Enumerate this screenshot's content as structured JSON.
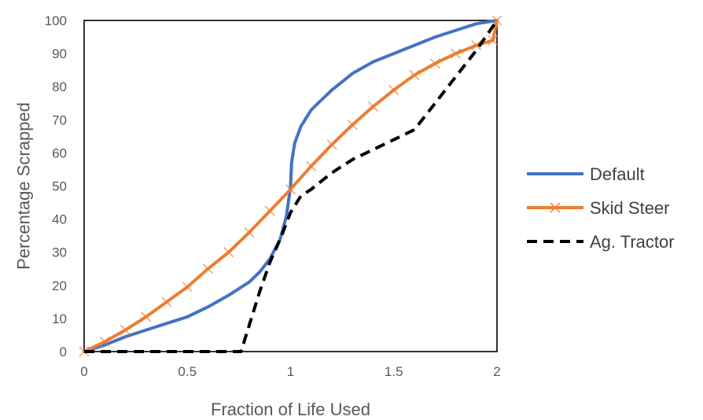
{
  "chart_data": {
    "type": "line",
    "title": "",
    "xlabel": "Fraction of Life Used",
    "ylabel": "Percentage Scrapped",
    "xlim": [
      0,
      2
    ],
    "ylim": [
      0,
      100
    ],
    "x_ticks": [
      0,
      0.5,
      1,
      1.5,
      2
    ],
    "x_tick_labels": [
      "0",
      "0.5",
      "1",
      "1.5",
      "2"
    ],
    "y_ticks": [
      0,
      10,
      20,
      30,
      40,
      50,
      60,
      70,
      80,
      90,
      100
    ],
    "y_tick_labels": [
      "0",
      "10",
      "20",
      "30",
      "40",
      "50",
      "60",
      "70",
      "80",
      "90",
      "100"
    ],
    "grid": false,
    "legend_position": "right",
    "series": [
      {
        "name": "Default",
        "color": "#4472C4",
        "style": "solid",
        "marker": "none",
        "x": [
          0,
          0.1,
          0.2,
          0.3,
          0.4,
          0.5,
          0.6,
          0.7,
          0.8,
          0.85,
          0.9,
          0.95,
          0.98,
          1.0,
          1.005,
          1.02,
          1.05,
          1.1,
          1.15,
          1.2,
          1.3,
          1.4,
          1.5,
          1.6,
          1.7,
          1.8,
          1.9,
          2.0
        ],
        "y": [
          0,
          2,
          4.5,
          6.5,
          8.5,
          10.5,
          13.5,
          17,
          21,
          24,
          28,
          34,
          41,
          50,
          57,
          63,
          68,
          73,
          76,
          79,
          84,
          87.5,
          90,
          92.5,
          95,
          97,
          99,
          100
        ]
      },
      {
        "name": "Skid Steer",
        "color": "#ED7D31",
        "style": "solid",
        "marker": "x",
        "x": [
          0,
          0.1,
          0.2,
          0.3,
          0.4,
          0.5,
          0.6,
          0.7,
          0.8,
          0.9,
          1.0,
          1.1,
          1.2,
          1.3,
          1.4,
          1.5,
          1.6,
          1.7,
          1.8,
          1.9,
          1.98,
          2.0
        ],
        "y": [
          0,
          3,
          6.5,
          10.5,
          15,
          19.5,
          25,
          30,
          36,
          42.5,
          49,
          56,
          62.5,
          68.5,
          74,
          79,
          83.5,
          87,
          90,
          92.5,
          94,
          100
        ]
      },
      {
        "name": "Ag. Tractor",
        "color": "#000000",
        "style": "dashed",
        "marker": "none",
        "x": [
          0,
          0.5,
          0.76,
          0.8,
          0.85,
          0.9,
          0.95,
          1.0,
          1.05,
          1.1,
          1.2,
          1.3,
          1.4,
          1.5,
          1.6,
          1.7,
          1.8,
          1.9,
          2.0
        ],
        "y": [
          0,
          0,
          0,
          8,
          18,
          27,
          34,
          42,
          47,
          49,
          54,
          58,
          61,
          64,
          67,
          75,
          83,
          91,
          100
        ]
      }
    ]
  }
}
